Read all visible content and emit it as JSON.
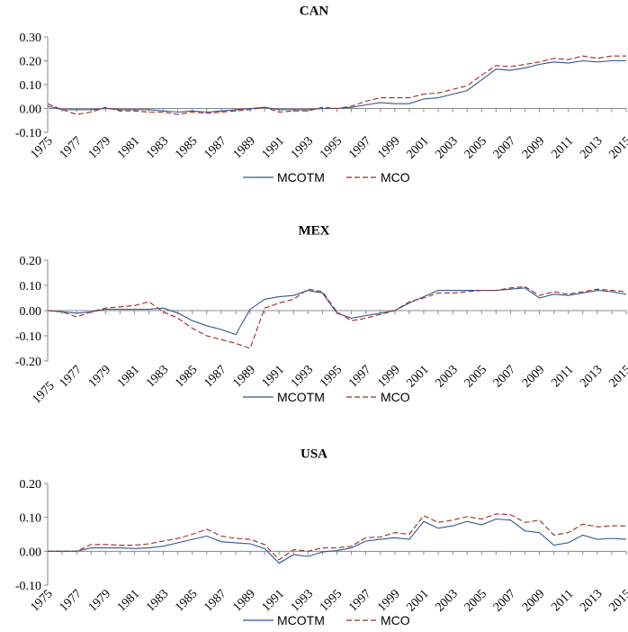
{
  "chart_data": [
    {
      "type": "line",
      "title": "CAN",
      "x": [
        1975,
        1976,
        1977,
        1978,
        1979,
        1980,
        1981,
        1982,
        1983,
        1984,
        1985,
        1986,
        1987,
        1988,
        1989,
        1990,
        1991,
        1992,
        1993,
        1994,
        1995,
        1996,
        1997,
        1998,
        1999,
        2000,
        2001,
        2002,
        2003,
        2004,
        2005,
        2006,
        2007,
        2008,
        2009,
        2010,
        2011,
        2012,
        2013,
        2014,
        2015
      ],
      "x_tick_labels": [
        "1975",
        "1977",
        "1979",
        "1981",
        "1983",
        "1985",
        "1987",
        "1989",
        "1991",
        "1993",
        "1995",
        "1997",
        "1999",
        "2001",
        "2003",
        "2005",
        "2007",
        "2009",
        "2011",
        "2013",
        "2015"
      ],
      "ylim": [
        -0.1,
        0.3
      ],
      "y_ticks": [
        -0.1,
        0.0,
        0.1,
        0.2,
        0.3
      ],
      "y_tick_labels": [
        "-0.10",
        "0.00",
        "0.10",
        "0.20",
        "0.30"
      ],
      "series": [
        {
          "name": "MCOTM",
          "style": "solid",
          "color": "#2f5597",
          "values": [
            0.01,
            -0.005,
            -0.005,
            -0.005,
            0.0,
            -0.005,
            -0.005,
            -0.005,
            -0.01,
            -0.015,
            -0.01,
            -0.015,
            -0.01,
            -0.005,
            0.0,
            0.005,
            -0.005,
            -0.005,
            -0.005,
            0.0,
            0.0,
            0.005,
            0.015,
            0.025,
            0.02,
            0.02,
            0.04,
            0.045,
            0.06,
            0.075,
            0.12,
            0.165,
            0.16,
            0.17,
            0.185,
            0.195,
            0.19,
            0.2,
            0.195,
            0.2,
            0.2
          ]
        },
        {
          "name": "MCO",
          "style": "dashed",
          "color": "#9e2a24",
          "values": [
            0.02,
            -0.005,
            -0.025,
            -0.015,
            0.005,
            -0.01,
            -0.01,
            -0.015,
            -0.015,
            -0.025,
            -0.015,
            -0.02,
            -0.015,
            -0.01,
            -0.005,
            0.005,
            -0.015,
            -0.01,
            -0.01,
            0.005,
            0.0,
            0.01,
            0.03,
            0.045,
            0.045,
            0.045,
            0.06,
            0.065,
            0.08,
            0.095,
            0.14,
            0.18,
            0.175,
            0.185,
            0.195,
            0.21,
            0.205,
            0.22,
            0.21,
            0.22,
            0.22
          ]
        }
      ],
      "legend": [
        "MCOTM",
        "MCO"
      ],
      "legend_position": "bottom"
    },
    {
      "type": "line",
      "title": "MEX",
      "x": [
        1975,
        1976,
        1977,
        1978,
        1979,
        1980,
        1981,
        1982,
        1983,
        1984,
        1985,
        1986,
        1987,
        1988,
        1989,
        1990,
        1991,
        1992,
        1993,
        1994,
        1995,
        1996,
        1997,
        1998,
        1999,
        2000,
        2001,
        2002,
        2003,
        2004,
        2005,
        2006,
        2007,
        2008,
        2009,
        2010,
        2011,
        2012,
        2013,
        2014,
        2015
      ],
      "x_tick_labels": [
        "1975",
        "1977",
        "1979",
        "1981",
        "1983",
        "1985",
        "1987",
        "1989",
        "1991",
        "1993",
        "1995",
        "1997",
        "1999",
        "2001",
        "2003",
        "2005",
        "2007",
        "2009",
        "2011",
        "2013",
        "2015"
      ],
      "ylim": [
        -0.2,
        0.2
      ],
      "y_ticks": [
        -0.2,
        -0.1,
        0.0,
        0.1,
        0.2
      ],
      "y_tick_labels": [
        "-0.20",
        "-0.10",
        "0.00",
        "0.10",
        "0.20"
      ],
      "series": [
        {
          "name": "MCOTM",
          "style": "solid",
          "color": "#2f5597",
          "values": [
            0.0,
            -0.005,
            -0.01,
            -0.005,
            0.005,
            0.005,
            0.005,
            0.005,
            0.01,
            -0.01,
            -0.04,
            -0.06,
            -0.075,
            -0.095,
            0.005,
            0.045,
            0.055,
            0.06,
            0.08,
            0.07,
            -0.01,
            -0.03,
            -0.02,
            -0.01,
            0.0,
            0.03,
            0.055,
            0.08,
            0.08,
            0.08,
            0.08,
            0.08,
            0.085,
            0.09,
            0.05,
            0.065,
            0.06,
            0.07,
            0.08,
            0.075,
            0.065
          ]
        },
        {
          "name": "MCO",
          "style": "dashed",
          "color": "#9e2a24",
          "values": [
            0.0,
            -0.005,
            -0.025,
            -0.005,
            0.01,
            0.015,
            0.02,
            0.035,
            -0.005,
            -0.03,
            -0.07,
            -0.1,
            -0.115,
            -0.13,
            -0.15,
            0.01,
            0.03,
            0.045,
            0.085,
            0.075,
            -0.005,
            -0.04,
            -0.03,
            -0.015,
            0.0,
            0.035,
            0.05,
            0.07,
            0.07,
            0.075,
            0.08,
            0.08,
            0.09,
            0.095,
            0.06,
            0.075,
            0.065,
            0.075,
            0.085,
            0.08,
            0.075
          ]
        }
      ],
      "legend": [
        "MCOTM",
        "MCO"
      ],
      "legend_position": "bottom"
    },
    {
      "type": "line",
      "title": "USA",
      "x": [
        1975,
        1976,
        1977,
        1978,
        1979,
        1980,
        1981,
        1982,
        1983,
        1984,
        1985,
        1986,
        1987,
        1988,
        1989,
        1990,
        1991,
        1992,
        1993,
        1994,
        1995,
        1996,
        1997,
        1998,
        1999,
        2000,
        2001,
        2002,
        2003,
        2004,
        2005,
        2006,
        2007,
        2008,
        2009,
        2010,
        2011,
        2012,
        2013,
        2014,
        2015
      ],
      "x_tick_labels": [
        "1975",
        "1977",
        "1979",
        "1981",
        "1983",
        "1985",
        "1987",
        "1989",
        "1991",
        "1993",
        "1995",
        "1997",
        "1999",
        "2001",
        "2003",
        "2005",
        "2007",
        "2009",
        "2011",
        "2013",
        "2015"
      ],
      "ylim": [
        -0.1,
        0.2
      ],
      "y_ticks": [
        -0.1,
        0.0,
        0.1,
        0.2
      ],
      "y_tick_labels": [
        "-0.10",
        "0.00",
        "0.10",
        "0.20"
      ],
      "series": [
        {
          "name": "MCOTM",
          "style": "solid",
          "color": "#2f5597",
          "values": [
            0.0,
            0.0,
            0.0,
            0.01,
            0.01,
            0.01,
            0.008,
            0.01,
            0.015,
            0.025,
            0.035,
            0.045,
            0.028,
            0.025,
            0.022,
            0.008,
            -0.035,
            -0.01,
            -0.015,
            -0.002,
            0.002,
            0.01,
            0.03,
            0.035,
            0.04,
            0.035,
            0.088,
            0.068,
            0.075,
            0.088,
            0.078,
            0.095,
            0.092,
            0.06,
            0.055,
            0.018,
            0.025,
            0.048,
            0.035,
            0.038,
            0.035
          ]
        },
        {
          "name": "MCO",
          "style": "dashed",
          "color": "#9e2a24",
          "values": [
            0.0,
            0.0,
            0.0,
            0.02,
            0.02,
            0.018,
            0.018,
            0.022,
            0.03,
            0.038,
            0.05,
            0.065,
            0.045,
            0.038,
            0.035,
            0.02,
            -0.025,
            0.005,
            0.0,
            0.01,
            0.01,
            0.015,
            0.04,
            0.042,
            0.055,
            0.05,
            0.105,
            0.085,
            0.092,
            0.102,
            0.095,
            0.11,
            0.108,
            0.085,
            0.092,
            0.048,
            0.055,
            0.08,
            0.072,
            0.075,
            0.075
          ]
        }
      ],
      "legend": [
        "MCOTM",
        "MCO"
      ],
      "legend_position": "bottom"
    }
  ]
}
